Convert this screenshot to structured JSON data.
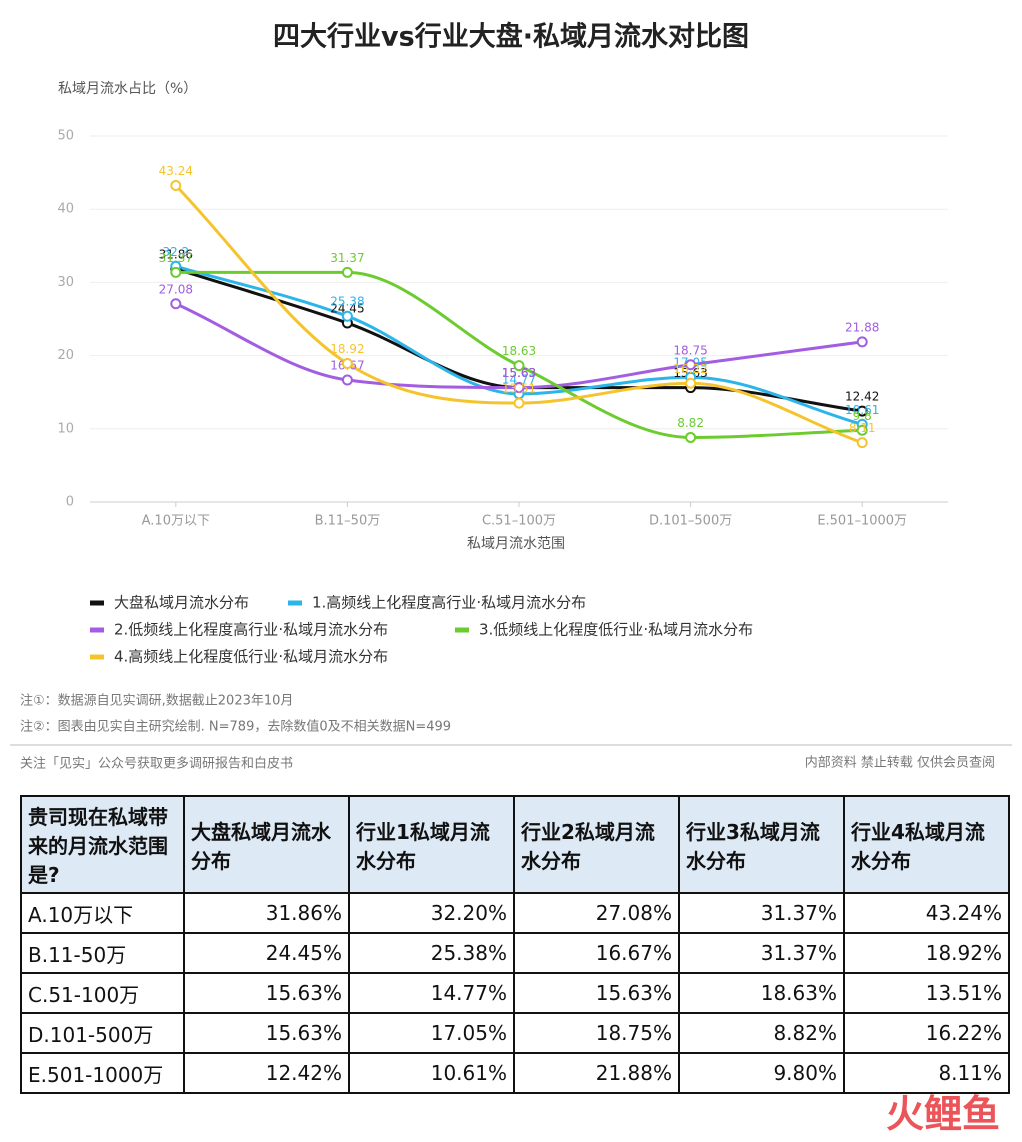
{
  "chart_data": {
    "type": "line",
    "title": "四大行业vs行业大盘·私域月流水对比图",
    "y_label": "私域月流水占比（%）",
    "x_label": "私域月流水范围",
    "categories": [
      "A.10万以下",
      "B.11–50万",
      "C.51–100万",
      "D.101–500万",
      "E.501–1000万"
    ],
    "ylim": [
      0,
      50
    ],
    "yticks": [
      0,
      10,
      20,
      30,
      40,
      50
    ],
    "grid": true,
    "series": [
      {
        "name": "大盘私域月流水分布",
        "color": "#111111",
        "values": [
          31.86,
          24.45,
          15.63,
          15.63,
          12.42
        ]
      },
      {
        "name": "1.高频线上化程度高行业·私域月流水分布",
        "color": "#2bb5e8",
        "values": [
          32.2,
          25.38,
          14.77,
          17.05,
          10.61
        ]
      },
      {
        "name": "2.低频线上化程度高行业·私域月流水分布",
        "color": "#a35de0",
        "values": [
          27.08,
          16.67,
          15.63,
          18.75,
          21.88
        ]
      },
      {
        "name": "3.低频线上化程度低行业·私域月流水分布",
        "color": "#6ccb2e",
        "values": [
          31.37,
          31.37,
          18.63,
          8.82,
          9.8
        ]
      },
      {
        "name": "4.高频线上化程度低行业·私域月流水分布",
        "color": "#f5c42c",
        "values": [
          43.24,
          18.92,
          13.51,
          16.22,
          8.11
        ]
      }
    ]
  },
  "notes": [
    "注①：数据源自见实调研,数据截止2023年10月",
    "注②：图表由见实自主研究绘制. N=789，去除数值0及不相关数据N=499"
  ],
  "footer": {
    "left": "关注「见实」公众号获取更多调研报告和白皮书",
    "right": "内部资料 禁止转载 仅供会员查阅"
  },
  "table": {
    "header": [
      "贵司现在私域带来的月流水范围是?",
      "大盘私域月流水分布",
      "行业1私域月流水分布",
      "行业2私域月流水分布",
      "行业3私域月流水分布",
      "行业4私域月流水分布"
    ],
    "rows": [
      [
        "A.10万以下",
        "31.86%",
        "32.20%",
        "27.08%",
        "31.37%",
        "43.24%"
      ],
      [
        "B.11-50万",
        "24.45%",
        "25.38%",
        "16.67%",
        "31.37%",
        "18.92%"
      ],
      [
        "C.51-100万",
        "15.63%",
        "14.77%",
        "15.63%",
        "18.63%",
        "13.51%"
      ],
      [
        "D.101-500万",
        "15.63%",
        "17.05%",
        "18.75%",
        "8.82%",
        "16.22%"
      ],
      [
        "E.501-1000万",
        "12.42%",
        "10.61%",
        "21.88%",
        "9.80%",
        "8.11%"
      ]
    ]
  },
  "watermark": "火鲤鱼"
}
